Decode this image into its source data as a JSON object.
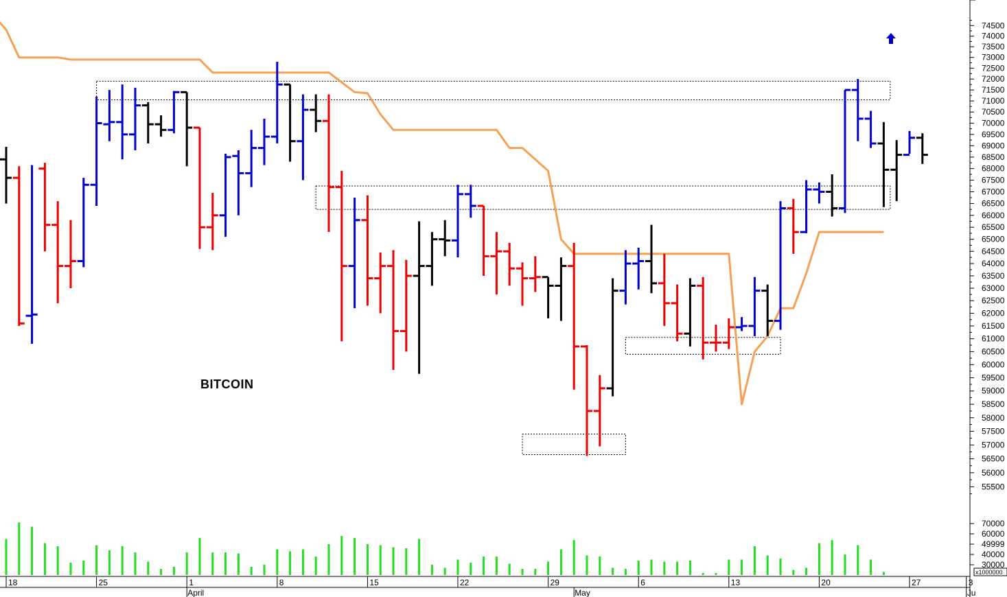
{
  "chart_data": {
    "type": "ohlc-bar",
    "title": "BITCOIN",
    "price_axis": {
      "scale": "log",
      "range": [
        55000,
        75000
      ],
      "ticks": [
        55500,
        56000,
        56500,
        57000,
        57500,
        58000,
        58500,
        59000,
        59500,
        60000,
        60500,
        61000,
        61500,
        62000,
        62500,
        63000,
        63500,
        64000,
        64500,
        65000,
        65500,
        66000,
        66500,
        67000,
        67500,
        68000,
        68500,
        69000,
        69500,
        70000,
        70500,
        71000,
        71500,
        72000,
        72500,
        73000,
        73500,
        74000,
        74500
      ]
    },
    "volume_axis": {
      "ticks": [
        "70000",
        "60000",
        "49999",
        "40000",
        "30000"
      ],
      "unit_label": "x1000000",
      "range": [
        20000,
        82000
      ]
    },
    "x_axis": {
      "day_labels": [
        "18",
        "25",
        "1",
        "8",
        "15",
        "22",
        "29",
        "6",
        "13",
        "20",
        "27",
        "3"
      ],
      "month_labels": [
        "April",
        "May",
        "Ju"
      ]
    },
    "colors": {
      "up": "#0000cc",
      "down": "#ee0000",
      "neutral": "#000000",
      "stop_line": "#f5a055",
      "volume": "#22dd22",
      "boxes": "#000000"
    },
    "bars": [
      {
        "o": 68400,
        "h": 68950,
        "l": 66500,
        "c": 67600,
        "col": "k"
      },
      {
        "o": 67600,
        "h": 68100,
        "l": 61500,
        "c": 61600,
        "col": "r"
      },
      {
        "o": 61900,
        "h": 68150,
        "l": 60800,
        "c": 61950,
        "col": "b"
      },
      {
        "o": 68000,
        "h": 68250,
        "l": 64500,
        "c": 65600,
        "col": "r"
      },
      {
        "o": 65600,
        "h": 66600,
        "l": 62400,
        "c": 63900,
        "col": "r"
      },
      {
        "o": 63900,
        "h": 65800,
        "l": 63000,
        "c": 64100,
        "col": "r"
      },
      {
        "o": 64100,
        "h": 67600,
        "l": 63850,
        "c": 67300,
        "col": "b"
      },
      {
        "o": 67300,
        "h": 71200,
        "l": 66400,
        "c": 70000,
        "col": "b"
      },
      {
        "o": 69950,
        "h": 71500,
        "l": 69200,
        "c": 70050,
        "col": "b"
      },
      {
        "o": 70050,
        "h": 71750,
        "l": 68400,
        "c": 69500,
        "col": "b"
      },
      {
        "o": 69500,
        "h": 71600,
        "l": 68800,
        "c": 70800,
        "col": "b"
      },
      {
        "o": 70800,
        "h": 70950,
        "l": 69100,
        "c": 69950,
        "col": "k"
      },
      {
        "o": 69950,
        "h": 70350,
        "l": 69400,
        "c": 69700,
        "col": "k"
      },
      {
        "o": 69700,
        "h": 71450,
        "l": 69550,
        "c": 71400,
        "col": "b"
      },
      {
        "o": 71400,
        "h": 71400,
        "l": 68100,
        "c": 69800,
        "col": "k"
      },
      {
        "o": 69800,
        "h": 69800,
        "l": 64600,
        "c": 65500,
        "col": "r"
      },
      {
        "o": 65500,
        "h": 66950,
        "l": 64550,
        "c": 66000,
        "col": "r"
      },
      {
        "o": 66000,
        "h": 68650,
        "l": 65100,
        "c": 68500,
        "col": "b"
      },
      {
        "o": 68550,
        "h": 68800,
        "l": 66000,
        "c": 67800,
        "col": "b"
      },
      {
        "o": 67800,
        "h": 69700,
        "l": 67200,
        "c": 68900,
        "col": "b"
      },
      {
        "o": 68900,
        "h": 70200,
        "l": 68150,
        "c": 69400,
        "col": "b"
      },
      {
        "o": 69400,
        "h": 72800,
        "l": 69100,
        "c": 71750,
        "col": "b"
      },
      {
        "o": 71750,
        "h": 71750,
        "l": 68300,
        "c": 69200,
        "col": "k"
      },
      {
        "o": 69200,
        "h": 71300,
        "l": 67500,
        "c": 70600,
        "col": "b"
      },
      {
        "o": 70600,
        "h": 71300,
        "l": 69600,
        "c": 70100,
        "col": "k"
      },
      {
        "o": 70100,
        "h": 71300,
        "l": 65300,
        "c": 67200,
        "col": "r"
      },
      {
        "o": 67200,
        "h": 67900,
        "l": 60900,
        "c": 63900,
        "col": "r"
      },
      {
        "o": 63900,
        "h": 66750,
        "l": 62200,
        "c": 65800,
        "col": "b"
      },
      {
        "o": 65800,
        "h": 66850,
        "l": 62300,
        "c": 63400,
        "col": "r"
      },
      {
        "o": 63400,
        "h": 64450,
        "l": 62000,
        "c": 63900,
        "col": "r"
      },
      {
        "o": 63900,
        "h": 64550,
        "l": 59800,
        "c": 61300,
        "col": "r"
      },
      {
        "o": 61300,
        "h": 64150,
        "l": 60500,
        "c": 63500,
        "col": "r"
      },
      {
        "o": 63500,
        "h": 65750,
        "l": 59650,
        "c": 63900,
        "col": "k"
      },
      {
        "o": 63900,
        "h": 65300,
        "l": 63100,
        "c": 65000,
        "col": "k"
      },
      {
        "o": 65000,
        "h": 65800,
        "l": 64300,
        "c": 64950,
        "col": "k"
      },
      {
        "o": 64950,
        "h": 67300,
        "l": 64250,
        "c": 66900,
        "col": "b"
      },
      {
        "o": 66900,
        "h": 67300,
        "l": 65900,
        "c": 66400,
        "col": "b"
      },
      {
        "o": 66400,
        "h": 66400,
        "l": 63500,
        "c": 64300,
        "col": "r"
      },
      {
        "o": 64300,
        "h": 65300,
        "l": 62750,
        "c": 64500,
        "col": "r"
      },
      {
        "o": 64500,
        "h": 64850,
        "l": 63100,
        "c": 63800,
        "col": "r"
      },
      {
        "o": 63800,
        "h": 64050,
        "l": 62300,
        "c": 63400,
        "col": "r"
      },
      {
        "o": 63400,
        "h": 64300,
        "l": 62850,
        "c": 63450,
        "col": "r"
      },
      {
        "o": 63450,
        "h": 63450,
        "l": 61800,
        "c": 63100,
        "col": "k"
      },
      {
        "o": 63100,
        "h": 64250,
        "l": 61700,
        "c": 63900,
        "col": "k"
      },
      {
        "o": 63900,
        "h": 64850,
        "l": 59050,
        "c": 60700,
        "col": "r"
      },
      {
        "o": 60700,
        "h": 60750,
        "l": 56600,
        "c": 58250,
        "col": "r"
      },
      {
        "o": 58250,
        "h": 59600,
        "l": 56950,
        "c": 59100,
        "col": "r"
      },
      {
        "o": 59100,
        "h": 63400,
        "l": 58800,
        "c": 62900,
        "col": "k"
      },
      {
        "o": 62900,
        "h": 64550,
        "l": 62350,
        "c": 64000,
        "col": "b"
      },
      {
        "o": 64000,
        "h": 64650,
        "l": 62950,
        "c": 64100,
        "col": "b"
      },
      {
        "o": 64100,
        "h": 65600,
        "l": 62800,
        "c": 63200,
        "col": "k"
      },
      {
        "o": 63200,
        "h": 64400,
        "l": 61500,
        "c": 62400,
        "col": "r"
      },
      {
        "o": 62400,
        "h": 63150,
        "l": 60900,
        "c": 61200,
        "col": "r"
      },
      {
        "o": 61200,
        "h": 63400,
        "l": 60700,
        "c": 63100,
        "col": "k"
      },
      {
        "o": 63100,
        "h": 63450,
        "l": 60200,
        "c": 60850,
        "col": "r"
      },
      {
        "o": 60850,
        "h": 61550,
        "l": 60500,
        "c": 60850,
        "col": "r"
      },
      {
        "o": 60850,
        "h": 61800,
        "l": 60600,
        "c": 61450,
        "col": "r"
      },
      {
        "o": 61450,
        "h": 61850,
        "l": 61300,
        "c": 61500,
        "col": "b"
      },
      {
        "o": 61500,
        "h": 63450,
        "l": 61100,
        "c": 62900,
        "col": "b"
      },
      {
        "o": 62900,
        "h": 63150,
        "l": 61100,
        "c": 61700,
        "col": "k"
      },
      {
        "o": 61700,
        "h": 66600,
        "l": 61350,
        "c": 66300,
        "col": "b"
      },
      {
        "o": 66300,
        "h": 66700,
        "l": 64400,
        "c": 65300,
        "col": "r"
      },
      {
        "o": 65300,
        "h": 67500,
        "l": 65250,
        "c": 67100,
        "col": "b"
      },
      {
        "o": 67100,
        "h": 67400,
        "l": 66500,
        "c": 67000,
        "col": "b"
      },
      {
        "o": 67000,
        "h": 67750,
        "l": 65950,
        "c": 66300,
        "col": "k"
      },
      {
        "o": 66300,
        "h": 71500,
        "l": 66100,
        "c": 71500,
        "col": "b"
      },
      {
        "o": 71500,
        "h": 72000,
        "l": 69200,
        "c": 70200,
        "col": "b"
      },
      {
        "o": 70200,
        "h": 70550,
        "l": 68900,
        "c": 69100,
        "col": "b"
      },
      {
        "o": 69100,
        "h": 70050,
        "l": 66350,
        "c": 67950,
        "col": "k"
      },
      {
        "o": 67950,
        "h": 69250,
        "l": 66600,
        "c": 68600,
        "col": "k"
      },
      {
        "o": 68600,
        "h": 69650,
        "l": 68650,
        "c": 69350,
        "col": "b"
      },
      {
        "o": 69350,
        "h": 69550,
        "l": 68200,
        "c": 68600,
        "col": "k"
      }
    ],
    "stop_line": [
      {
        "i": -1,
        "v": 75000
      },
      {
        "i": 0,
        "v": 74300
      },
      {
        "i": 1,
        "v": 73000
      },
      {
        "i": 4,
        "v": 73000
      },
      {
        "i": 5,
        "v": 72900
      },
      {
        "i": 15,
        "v": 72900
      },
      {
        "i": 16,
        "v": 72300
      },
      {
        "i": 25,
        "v": 72300
      },
      {
        "i": 27,
        "v": 71400
      },
      {
        "i": 28,
        "v": 71350
      },
      {
        "i": 29,
        "v": 70400
      },
      {
        "i": 30,
        "v": 69700
      },
      {
        "i": 38,
        "v": 69700
      },
      {
        "i": 39,
        "v": 68900
      },
      {
        "i": 40,
        "v": 68900
      },
      {
        "i": 42,
        "v": 67900
      },
      {
        "i": 43,
        "v": 65000
      },
      {
        "i": 44,
        "v": 64400
      },
      {
        "i": 56,
        "v": 64400
      },
      {
        "i": 57,
        "v": 58500
      },
      {
        "i": 58,
        "v": 60500
      },
      {
        "i": 59,
        "v": 61100
      },
      {
        "i": 60,
        "v": 62200
      },
      {
        "i": 61,
        "v": 62200
      },
      {
        "i": 62,
        "v": 63600
      },
      {
        "i": 63,
        "v": 65300
      },
      {
        "i": 68,
        "v": 65300
      }
    ],
    "volumes": [
      {
        "i": 0,
        "v": 55000
      },
      {
        "i": 1,
        "v": 71000
      },
      {
        "i": 2,
        "v": 67000
      },
      {
        "i": 3,
        "v": 51000
      },
      {
        "i": 4,
        "v": 48000
      },
      {
        "i": 5,
        "v": 32000
      },
      {
        "i": 6,
        "v": 34000
      },
      {
        "i": 7,
        "v": 49000
      },
      {
        "i": 8,
        "v": 44000
      },
      {
        "i": 9,
        "v": 48000
      },
      {
        "i": 10,
        "v": 42000
      },
      {
        "i": 11,
        "v": 33000
      },
      {
        "i": 12,
        "v": 26000
      },
      {
        "i": 13,
        "v": 28000
      },
      {
        "i": 14,
        "v": 42000
      },
      {
        "i": 15,
        "v": 56000
      },
      {
        "i": 16,
        "v": 42000
      },
      {
        "i": 17,
        "v": 42000
      },
      {
        "i": 18,
        "v": 41000
      },
      {
        "i": 19,
        "v": 28000
      },
      {
        "i": 20,
        "v": 30000
      },
      {
        "i": 21,
        "v": 45000
      },
      {
        "i": 22,
        "v": 43000
      },
      {
        "i": 23,
        "v": 45000
      },
      {
        "i": 24,
        "v": 38000
      },
      {
        "i": 25,
        "v": 50000
      },
      {
        "i": 26,
        "v": 58000
      },
      {
        "i": 27,
        "v": 56000
      },
      {
        "i": 28,
        "v": 50000
      },
      {
        "i": 29,
        "v": 49000
      },
      {
        "i": 30,
        "v": 47000
      },
      {
        "i": 31,
        "v": 46000
      },
      {
        "i": 32,
        "v": 55000
      },
      {
        "i": 33,
        "v": 30000
      },
      {
        "i": 34,
        "v": 27000
      },
      {
        "i": 35,
        "v": 35000
      },
      {
        "i": 36,
        "v": 32000
      },
      {
        "i": 37,
        "v": 38000
      },
      {
        "i": 38,
        "v": 38000
      },
      {
        "i": 39,
        "v": 31000
      },
      {
        "i": 40,
        "v": 26000
      },
      {
        "i": 41,
        "v": 26000
      },
      {
        "i": 42,
        "v": 33000
      },
      {
        "i": 43,
        "v": 45000
      },
      {
        "i": 44,
        "v": 54000
      },
      {
        "i": 45,
        "v": 39000
      },
      {
        "i": 46,
        "v": 38000
      },
      {
        "i": 47,
        "v": 27000
      },
      {
        "i": 48,
        "v": 26000
      },
      {
        "i": 49,
        "v": 34000
      },
      {
        "i": 50,
        "v": 35000
      },
      {
        "i": 51,
        "v": 33000
      },
      {
        "i": 52,
        "v": 33000
      },
      {
        "i": 53,
        "v": 34000
      },
      {
        "i": 54,
        "v": 22000
      },
      {
        "i": 55,
        "v": 22000
      },
      {
        "i": 56,
        "v": 35000
      },
      {
        "i": 57,
        "v": 35000
      },
      {
        "i": 58,
        "v": 48000
      },
      {
        "i": 59,
        "v": 39000
      },
      {
        "i": 60,
        "v": 36000
      },
      {
        "i": 61,
        "v": 25000
      },
      {
        "i": 62,
        "v": 27000
      },
      {
        "i": 63,
        "v": 51000
      },
      {
        "i": 64,
        "v": 54000
      },
      {
        "i": 65,
        "v": 40000
      },
      {
        "i": 66,
        "v": 49000
      },
      {
        "i": 67,
        "v": 35000
      },
      {
        "i": 68,
        "v": 23000
      }
    ],
    "zones": [
      {
        "i0": 7,
        "i1": 68.5,
        "hi": 71900,
        "lo": 71050
      },
      {
        "i0": 24,
        "i1": 68.5,
        "hi": 67250,
        "lo": 66250
      },
      {
        "i0": 40,
        "i1": 48,
        "hi": 57400,
        "lo": 56650
      },
      {
        "i0": 48,
        "i1": 60,
        "hi": 61050,
        "lo": 60400
      }
    ],
    "signal_arrow": {
      "symbol": "up-arrow",
      "color": "#0000cc"
    },
    "grid": false
  }
}
